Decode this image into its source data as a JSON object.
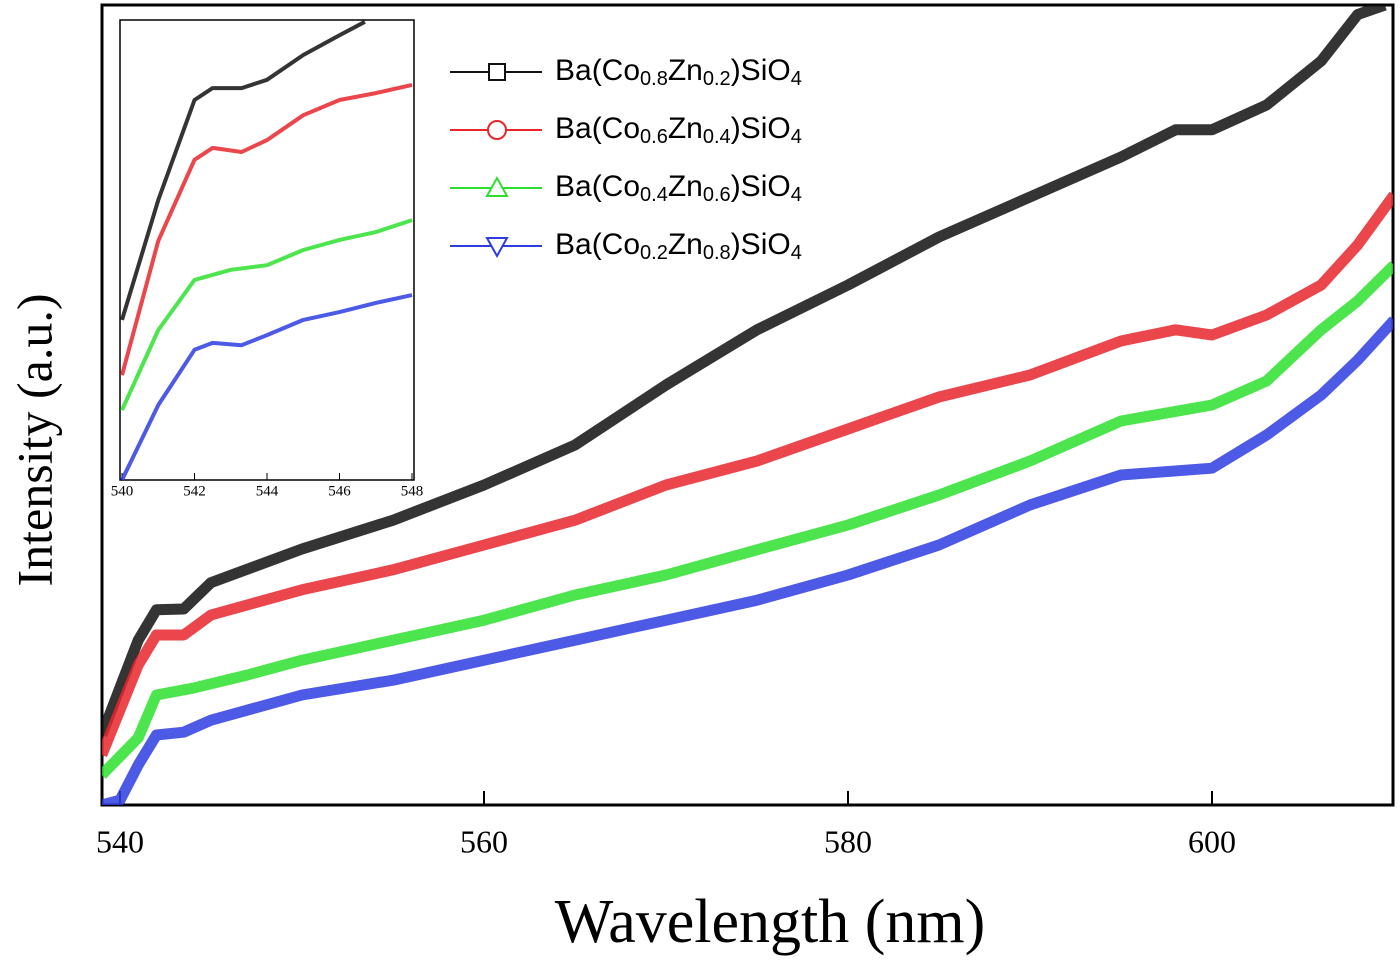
{
  "chart_data": [
    {
      "type": "line",
      "x_label": "Wavelength (nm)",
      "y_label": "Intensity (a.u.)",
      "xlim": [
        539,
        610
      ],
      "xticks": [
        540,
        560,
        580,
        600
      ],
      "ylim": [
        0,
        100
      ],
      "series": [
        {
          "name": "Ba(Co0.8Zn0.2)SiO4",
          "color": "#111111",
          "x": [
            539,
            541,
            542,
            543.5,
            545,
            550,
            555,
            560,
            565,
            570,
            575,
            580,
            585,
            590,
            595,
            598,
            600,
            603,
            606,
            608,
            609.5
          ],
          "values": [
            8.75,
            20.6,
            24.4,
            24.5,
            27.8,
            32,
            35.6,
            40,
            45,
            52.5,
            59.4,
            65,
            71,
            76,
            81,
            84.4,
            84.4,
            87.5,
            93,
            98.8,
            100
          ]
        },
        {
          "name": "Ba(Co0.6Zn0.4)SiO4",
          "color": "#e8262b",
          "x": [
            539,
            541,
            542,
            543.5,
            545,
            550,
            555,
            560,
            565,
            570,
            575,
            580,
            585,
            590,
            595,
            598,
            600,
            603,
            606,
            608,
            610
          ],
          "values": [
            6.25,
            17.5,
            21.25,
            21.25,
            23.75,
            26.9,
            29.4,
            32.5,
            35.6,
            40,
            43,
            47,
            51,
            53.75,
            58,
            59.4,
            58.75,
            61.25,
            65,
            70,
            76.25
          ]
        },
        {
          "name": "Ba(Co0.4Zn0.6)SiO4",
          "color": "#2ee02e",
          "x": [
            539,
            541,
            542,
            544,
            547,
            550,
            555,
            560,
            565,
            570,
            575,
            580,
            585,
            590,
            595,
            600,
            603,
            606,
            608,
            610
          ],
          "values": [
            3.75,
            8.4,
            13.75,
            14.6,
            16.25,
            18.1,
            20.6,
            23.1,
            26.25,
            28.75,
            31.9,
            35,
            38.75,
            43,
            48,
            50,
            53,
            59.4,
            63,
            67.5
          ]
        },
        {
          "name": "Ba(Co0.2Zn0.8)SiO4",
          "color": "#2d3de0",
          "x": [
            539,
            540,
            541,
            542,
            543.5,
            545,
            550,
            555,
            560,
            565,
            570,
            575,
            580,
            585,
            590,
            595,
            600,
            603,
            606,
            608,
            610
          ],
          "values": [
            0,
            0.6,
            5,
            8.75,
            9.1,
            10.6,
            13.75,
            15.6,
            18.1,
            20.6,
            23.1,
            25.6,
            28.75,
            32.5,
            37.5,
            41.25,
            42.1,
            46.25,
            51.25,
            55.6,
            60.6
          ]
        }
      ]
    },
    {
      "type": "line",
      "xlim": [
        540,
        548
      ],
      "xticks": [
        540,
        542,
        544,
        546,
        548
      ],
      "ylim": [
        0,
        100
      ],
      "series": [
        {
          "color": "#111111",
          "x": [
            540,
            541,
            542,
            542.5,
            543.3,
            544,
            545,
            546,
            546.7
          ],
          "values": [
            34.8,
            60.9,
            82.6,
            85.2,
            85.2,
            87,
            92.4,
            96.7,
            99.6
          ]
        },
        {
          "color": "#e8262b",
          "x": [
            540,
            541,
            542,
            542.5,
            543.3,
            544,
            545,
            546,
            547,
            548
          ],
          "values": [
            22.8,
            52,
            69.6,
            72.2,
            71.3,
            73.9,
            79.3,
            82.6,
            84.1,
            85.9
          ]
        },
        {
          "color": "#2ee02e",
          "x": [
            540,
            541,
            542,
            543,
            544,
            545,
            546,
            547,
            548
          ],
          "values": [
            15.2,
            32.6,
            43.5,
            45.7,
            46.7,
            50,
            52.2,
            53.9,
            56.5
          ]
        },
        {
          "color": "#2d3de0",
          "x": [
            540,
            541,
            542,
            542.5,
            543.3,
            544,
            545,
            546,
            547,
            548
          ],
          "values": [
            0,
            16.3,
            28.3,
            29.8,
            29.3,
            31.5,
            34.8,
            36.5,
            38.5,
            40.2
          ]
        }
      ]
    }
  ]
}
